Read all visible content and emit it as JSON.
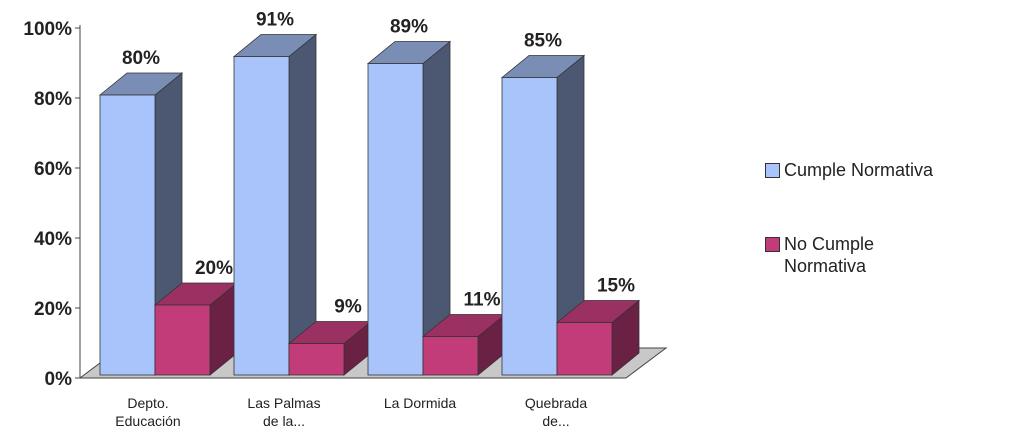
{
  "chart_data": {
    "type": "bar3d",
    "categories": [
      "Depto. Educación",
      "Las Palmas de la...",
      "La Dormida",
      "Quebrada de..."
    ],
    "series": [
      {
        "name": "Cumple Normativa",
        "color": "#a9c4fb",
        "values": [
          80,
          91,
          89,
          85
        ],
        "value_labels": [
          "80%",
          "91%",
          "89%",
          "85%"
        ]
      },
      {
        "name": "No Cumple Normativa",
        "color": "#c23c7a",
        "values": [
          20,
          9,
          11,
          15
        ],
        "value_labels": [
          "20%",
          "9%",
          "11%",
          "15%"
        ]
      }
    ],
    "ylim": [
      0,
      100
    ],
    "yticks": [
      {
        "value": 0,
        "label": "0%"
      },
      {
        "value": 20,
        "label": "20%"
      },
      {
        "value": 40,
        "label": "40%"
      },
      {
        "value": 60,
        "label": "60%"
      },
      {
        "value": 80,
        "label": "80%"
      },
      {
        "value": 100,
        "label": "100%"
      }
    ],
    "legend": "right"
  }
}
